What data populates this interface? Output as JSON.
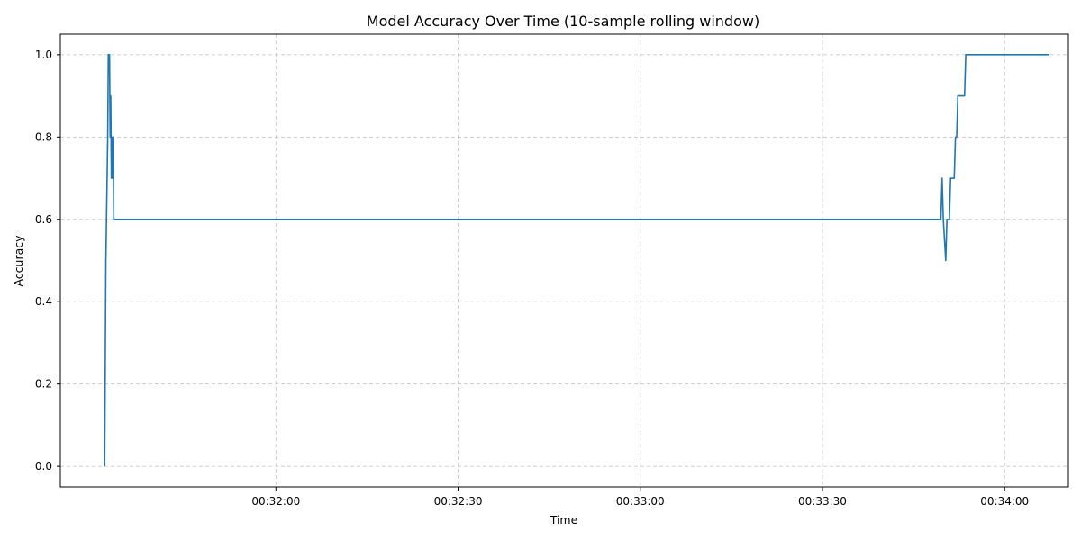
{
  "chart_data": {
    "type": "line",
    "title": "Model Accuracy Over Time (10-sample rolling window)",
    "xlabel": "Time",
    "ylabel": "Accuracy",
    "x_axis_type": "time",
    "xlim": [
      "00:31:24.5",
      "00:34:10.5"
    ],
    "ylim": [
      -0.05,
      1.05
    ],
    "x_ticks": [
      "00:32:00",
      "00:32:30",
      "00:33:00",
      "00:33:30",
      "00:34:00"
    ],
    "y_ticks": [
      "0.0",
      "0.2",
      "0.4",
      "0.6",
      "0.8",
      "1.0"
    ],
    "grid": true,
    "legend": "none",
    "series": [
      {
        "color": "#1f77b4",
        "points": [
          {
            "t": "00:31:31.8",
            "y": 0.0
          },
          {
            "t": "00:31:32.0",
            "y": 0.5
          },
          {
            "t": "00:31:32.2",
            "y": 0.7
          },
          {
            "t": "00:31:32.3",
            "y": 0.8
          },
          {
            "t": "00:31:32.4",
            "y": 1.0
          },
          {
            "t": "00:31:32.6",
            "y": 1.0
          },
          {
            "t": "00:31:32.7",
            "y": 0.8
          },
          {
            "t": "00:31:32.8",
            "y": 0.9
          },
          {
            "t": "00:31:32.9",
            "y": 0.7
          },
          {
            "t": "00:31:33.0",
            "y": 0.8
          },
          {
            "t": "00:31:33.1",
            "y": 0.7
          },
          {
            "t": "00:31:33.2",
            "y": 0.8
          },
          {
            "t": "00:31:33.3",
            "y": 0.6
          },
          {
            "t": "00:33:49.5",
            "y": 0.6
          },
          {
            "t": "00:33:49.7",
            "y": 0.7
          },
          {
            "t": "00:33:49.9",
            "y": 0.6
          },
          {
            "t": "00:33:50.3",
            "y": 0.5
          },
          {
            "t": "00:33:50.5",
            "y": 0.6
          },
          {
            "t": "00:33:50.9",
            "y": 0.6
          },
          {
            "t": "00:33:51.1",
            "y": 0.7
          },
          {
            "t": "00:33:51.7",
            "y": 0.7
          },
          {
            "t": "00:33:51.9",
            "y": 0.8
          },
          {
            "t": "00:33:52.1",
            "y": 0.8
          },
          {
            "t": "00:33:52.3",
            "y": 0.9
          },
          {
            "t": "00:33:53.4",
            "y": 0.9
          },
          {
            "t": "00:33:53.6",
            "y": 1.0
          },
          {
            "t": "00:34:07.4",
            "y": 1.0
          }
        ]
      }
    ]
  }
}
